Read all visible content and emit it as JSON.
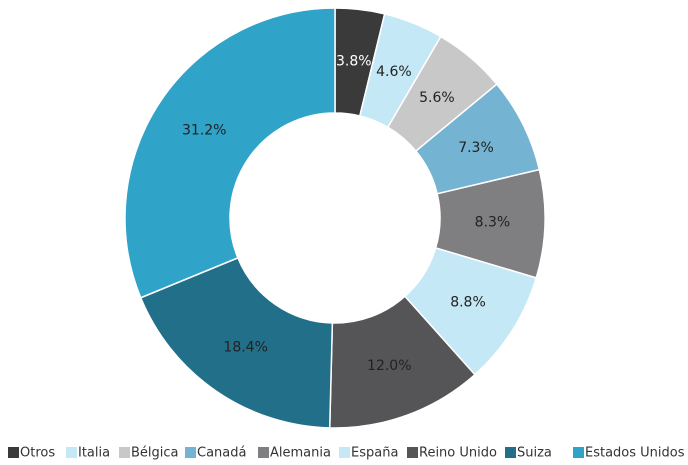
{
  "chart_data": {
    "type": "donut",
    "categories": [
      "Otros",
      "Italia",
      "Bélgica",
      "Canadá",
      "Alemania",
      "España",
      "Reino Unido",
      "Suiza",
      "Estados Unidos"
    ],
    "values": [
      3.8,
      4.6,
      5.6,
      7.3,
      8.3,
      8.8,
      12.0,
      18.4,
      31.2
    ],
    "value_labels": [
      "3.8%",
      "4.6%",
      "5.6%",
      "7.3%",
      "8.3%",
      "8.8%",
      "12.0%",
      "18.4%",
      "31.2%"
    ],
    "colors": [
      "#3a3a3a",
      "#c5e8f7",
      "#c8c8c8",
      "#74b4d2",
      "#7f7f81",
      "#c5e8f7",
      "#555557",
      "#216f88",
      "#2fa3c8"
    ],
    "legend": "bottom"
  }
}
